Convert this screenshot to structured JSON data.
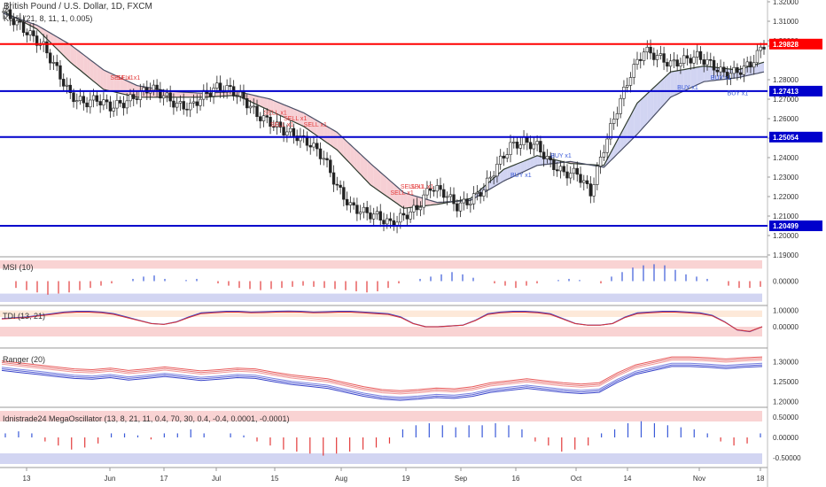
{
  "header": {
    "title": "British Pound / U.S. Dollar, 1D, FXCM",
    "study": "Kenji (21, 8, 11, 1, 0.005)"
  },
  "colors": {
    "up": "#ffffff",
    "down": "#222222",
    "red_line": "#ff0000",
    "blue_line": "#0000cc",
    "kenji_fast": "#2e3b2e",
    "kenji_slow": "#4a4f66",
    "fill_bear": "#f4c7cc",
    "fill_bull": "#c9cdf0",
    "buy": "#3a5ad9",
    "sell": "#e33b3b"
  },
  "chart_data": [
    {
      "type": "candlestick",
      "title": "British Pound / U.S. Dollar, 1D, FXCM",
      "ylim": [
        1.19,
        1.32
      ],
      "yticks": [
        "1.32000",
        "1.31000",
        "1.30000",
        "1.29727",
        "1.28000",
        "1.27000",
        "1.26000",
        "1.25000",
        "1.24000",
        "1.23000",
        "1.22000",
        "1.21000",
        "1.20000",
        "1.19000"
      ],
      "xticks": [
        "13",
        "Jun",
        "17",
        "Jul",
        "15",
        "Aug",
        "19",
        "Sep",
        "16",
        "Oct",
        "14",
        "Nov",
        "18"
      ],
      "current_price": "1.29727",
      "levels": [
        {
          "label": "1.29828",
          "value": 1.29828,
          "color": "red"
        },
        {
          "label": "1.27413",
          "value": 1.27413,
          "color": "blue"
        },
        {
          "label": "1.25054",
          "value": 1.25054,
          "color": "blue"
        },
        {
          "label": "1.20499",
          "value": 1.20499,
          "color": "blue"
        }
      ],
      "close_path": [
        [
          0,
          1.315
        ],
        [
          4,
          1.309
        ],
        [
          8,
          1.303
        ],
        [
          12,
          1.297
        ],
        [
          16,
          1.285
        ],
        [
          20,
          1.272
        ],
        [
          24,
          1.268
        ],
        [
          28,
          1.27
        ],
        [
          32,
          1.266
        ],
        [
          36,
          1.268
        ],
        [
          40,
          1.272
        ],
        [
          44,
          1.276
        ],
        [
          48,
          1.272
        ],
        [
          52,
          1.267
        ],
        [
          56,
          1.266
        ],
        [
          60,
          1.272
        ],
        [
          64,
          1.276
        ],
        [
          68,
          1.275
        ],
        [
          72,
          1.27
        ],
        [
          76,
          1.262
        ],
        [
          80,
          1.258
        ],
        [
          84,
          1.254
        ],
        [
          88,
          1.251
        ],
        [
          92,
          1.247
        ],
        [
          96,
          1.24
        ],
        [
          100,
          1.225
        ],
        [
          104,
          1.215
        ],
        [
          108,
          1.212
        ],
        [
          112,
          1.21
        ],
        [
          116,
          1.206
        ],
        [
          120,
          1.21
        ],
        [
          124,
          1.214
        ],
        [
          128,
          1.225
        ],
        [
          132,
          1.222
        ],
        [
          136,
          1.215
        ],
        [
          140,
          1.218
        ],
        [
          144,
          1.224
        ],
        [
          148,
          1.236
        ],
        [
          152,
          1.246
        ],
        [
          156,
          1.248
        ],
        [
          160,
          1.246
        ],
        [
          164,
          1.237
        ],
        [
          168,
          1.232
        ],
        [
          172,
          1.232
        ],
        [
          176,
          1.222
        ],
        [
          180,
          1.245
        ],
        [
          184,
          1.265
        ],
        [
          188,
          1.283
        ],
        [
          192,
          1.295
        ],
        [
          196,
          1.292
        ],
        [
          200,
          1.288
        ],
        [
          204,
          1.29
        ],
        [
          208,
          1.292
        ],
        [
          212,
          1.288
        ],
        [
          216,
          1.283
        ],
        [
          220,
          1.284
        ],
        [
          224,
          1.288
        ],
        [
          228,
          1.298
        ]
      ],
      "kenji_fast_path": [
        [
          0,
          1.315
        ],
        [
          10,
          1.306
        ],
        [
          20,
          1.289
        ],
        [
          30,
          1.275
        ],
        [
          40,
          1.271
        ],
        [
          50,
          1.271
        ],
        [
          60,
          1.271
        ],
        [
          70,
          1.272
        ],
        [
          80,
          1.264
        ],
        [
          90,
          1.256
        ],
        [
          100,
          1.244
        ],
        [
          110,
          1.226
        ],
        [
          120,
          1.214
        ],
        [
          130,
          1.216
        ],
        [
          140,
          1.219
        ],
        [
          150,
          1.234
        ],
        [
          160,
          1.241
        ],
        [
          170,
          1.237
        ],
        [
          180,
          1.236
        ],
        [
          190,
          1.268
        ],
        [
          200,
          1.284
        ],
        [
          210,
          1.287
        ],
        [
          220,
          1.285
        ],
        [
          228,
          1.289
        ]
      ],
      "kenji_slow_path": [
        [
          0,
          1.314
        ],
        [
          10,
          1.308
        ],
        [
          20,
          1.298
        ],
        [
          30,
          1.285
        ],
        [
          40,
          1.277
        ],
        [
          50,
          1.274
        ],
        [
          60,
          1.273
        ],
        [
          70,
          1.274
        ],
        [
          80,
          1.27
        ],
        [
          90,
          1.263
        ],
        [
          100,
          1.253
        ],
        [
          110,
          1.237
        ],
        [
          120,
          1.222
        ],
        [
          130,
          1.217
        ],
        [
          140,
          1.218
        ],
        [
          150,
          1.228
        ],
        [
          160,
          1.236
        ],
        [
          170,
          1.238
        ],
        [
          180,
          1.235
        ],
        [
          190,
          1.252
        ],
        [
          200,
          1.271
        ],
        [
          210,
          1.279
        ],
        [
          220,
          1.281
        ],
        [
          228,
          1.284
        ]
      ],
      "signals": [
        {
          "text": "SELL x1",
          "i": 32,
          "y": 1.28,
          "kind": "sell"
        },
        {
          "text": "SELL x1",
          "i": 34,
          "y": 1.28,
          "kind": "sell"
        },
        {
          "text": "SELL x1",
          "i": 78,
          "y": 1.262,
          "kind": "sell"
        },
        {
          "text": "SELL x1",
          "i": 84,
          "y": 1.259,
          "kind": "sell"
        },
        {
          "text": "SELL x1",
          "i": 80,
          "y": 1.256,
          "kind": "sell"
        },
        {
          "text": "SELL x1",
          "i": 90,
          "y": 1.256,
          "kind": "sell"
        },
        {
          "text": "SELL x1",
          "i": 119,
          "y": 1.224,
          "kind": "sell"
        },
        {
          "text": "SELL x1",
          "i": 122,
          "y": 1.224,
          "kind": "sell"
        },
        {
          "text": "SELL x1",
          "i": 116,
          "y": 1.221,
          "kind": "sell"
        },
        {
          "text": "BUY x1",
          "i": 152,
          "y": 1.23,
          "kind": "buy"
        },
        {
          "text": "BUY x1",
          "i": 164,
          "y": 1.24,
          "kind": "buy"
        },
        {
          "text": "BUY x1",
          "i": 202,
          "y": 1.275,
          "kind": "buy"
        },
        {
          "text": "BUY x1",
          "i": 212,
          "y": 1.28,
          "kind": "buy"
        },
        {
          "text": "BUY x1",
          "i": 217,
          "y": 1.272,
          "kind": "buy"
        }
      ]
    },
    {
      "type": "bar",
      "title": "MSI (10)",
      "ylim": [
        -1,
        1
      ],
      "yticks": [
        "0.00000"
      ],
      "values": [
        0,
        -0.3,
        -0.4,
        -0.5,
        -0.6,
        -0.55,
        -0.5,
        -0.4,
        -0.3,
        -0.2,
        -0.1,
        0,
        0.1,
        0.2,
        0.25,
        0.1,
        0,
        0.05,
        0.1,
        0,
        -0.1,
        -0.2,
        -0.3,
        -0.35,
        -0.4,
        -0.35,
        -0.3,
        -0.25,
        -0.2,
        -0.25,
        -0.3,
        -0.35,
        -0.4,
        -0.45,
        -0.5,
        -0.45,
        -0.3,
        -0.1,
        0,
        0.1,
        0.2,
        0.3,
        0.4,
        0.3,
        0.15,
        0,
        -0.1,
        -0.2,
        -0.3,
        -0.2,
        -0.1,
        0,
        0.05,
        0.1,
        0.05,
        0,
        -0.1,
        0.2,
        0.4,
        0.6,
        0.7,
        0.75,
        0.7,
        0.5,
        0.3,
        0.2,
        0.1,
        0,
        -0.2,
        -0.3,
        -0.3,
        -0.25
      ]
    },
    {
      "type": "line",
      "title": "TDI (13, 21)",
      "ylim": [
        -1.2,
        1.2
      ],
      "yticks": [
        "1.00000",
        "0.00000"
      ],
      "values": [
        0.5,
        0.55,
        0.6,
        0.7,
        0.8,
        0.9,
        0.95,
        0.95,
        0.9,
        0.8,
        0.6,
        0.4,
        0.2,
        0.15,
        0.3,
        0.6,
        0.85,
        0.9,
        0.95,
        0.95,
        0.9,
        0.92,
        0.95,
        0.96,
        0.95,
        0.9,
        0.92,
        0.95,
        0.95,
        0.9,
        0.85,
        0.8,
        0.6,
        0.2,
        0,
        0,
        0.05,
        0.1,
        0.4,
        0.8,
        0.9,
        0.95,
        0.95,
        0.9,
        0.8,
        0.5,
        0.2,
        0.1,
        0.1,
        0.2,
        0.6,
        0.85,
        0.9,
        0.95,
        0.95,
        0.9,
        0.85,
        0.7,
        0.3,
        -0.2,
        -0.3,
        0
      ]
    },
    {
      "type": "line",
      "title": "Ranger (20)",
      "ylim": [
        1.19,
        1.33
      ],
      "yticks": [
        "1.30000",
        "1.25000",
        "1.20000"
      ],
      "values": [
        1.29,
        1.285,
        1.28,
        1.275,
        1.27,
        1.268,
        1.272,
        1.266,
        1.27,
        1.275,
        1.27,
        1.265,
        1.268,
        1.272,
        1.27,
        1.262,
        1.255,
        1.25,
        1.245,
        1.235,
        1.225,
        1.218,
        1.215,
        1.218,
        1.222,
        1.22,
        1.225,
        1.235,
        1.24,
        1.245,
        1.24,
        1.235,
        1.232,
        1.235,
        1.26,
        1.28,
        1.29,
        1.3,
        1.3,
        1.298,
        1.295,
        1.298,
        1.3
      ]
    },
    {
      "type": "bar",
      "title": "Idnistrade24 MegaOscillator (13, 8, 21, 11, 0.4, 70, 30, 0.4, -0.4, 0.0001, -0.0001)",
      "ylim": [
        -0.7,
        0.7
      ],
      "yticks": [
        "0.50000",
        "0.00000",
        "-0.50000"
      ],
      "values": [
        0.1,
        0.15,
        0.1,
        -0.1,
        -0.2,
        -0.3,
        -0.25,
        -0.15,
        0.1,
        0.1,
        0.05,
        -0.05,
        0.1,
        0.1,
        0.2,
        0.1,
        0,
        0.1,
        0.05,
        -0.1,
        -0.2,
        -0.3,
        -0.35,
        -0.4,
        -0.45,
        -0.4,
        -0.35,
        -0.3,
        -0.25,
        -0.15,
        0.2,
        0.3,
        0.35,
        0.3,
        0.25,
        0.3,
        0.3,
        0.35,
        0.3,
        0.2,
        -0.1,
        -0.2,
        -0.35,
        -0.3,
        -0.2,
        0.1,
        0.2,
        0.35,
        0.4,
        0.35,
        0.3,
        0.25,
        0.2,
        0.1,
        -0.1,
        -0.2,
        -0.15,
        0.1
      ]
    }
  ],
  "panes": {
    "msi": {
      "label": "MSI (10)",
      "tick": "0.00000"
    },
    "tdi": {
      "label": "TDI (13, 21)",
      "ticks": [
        "1.00000",
        "0.00000"
      ]
    },
    "ranger": {
      "label": "Ranger (20)",
      "ticks": [
        "1.30000",
        "1.25000",
        "1.20000"
      ]
    },
    "osc": {
      "label": "Idnistrade24 MegaOscillator (13, 8, 21, 11, 0.4, 70, 30, 0.4, -0.4, 0.0001, -0.0001)",
      "ticks": [
        "0.50000",
        "0.00000",
        "-0.50000"
      ]
    }
  }
}
